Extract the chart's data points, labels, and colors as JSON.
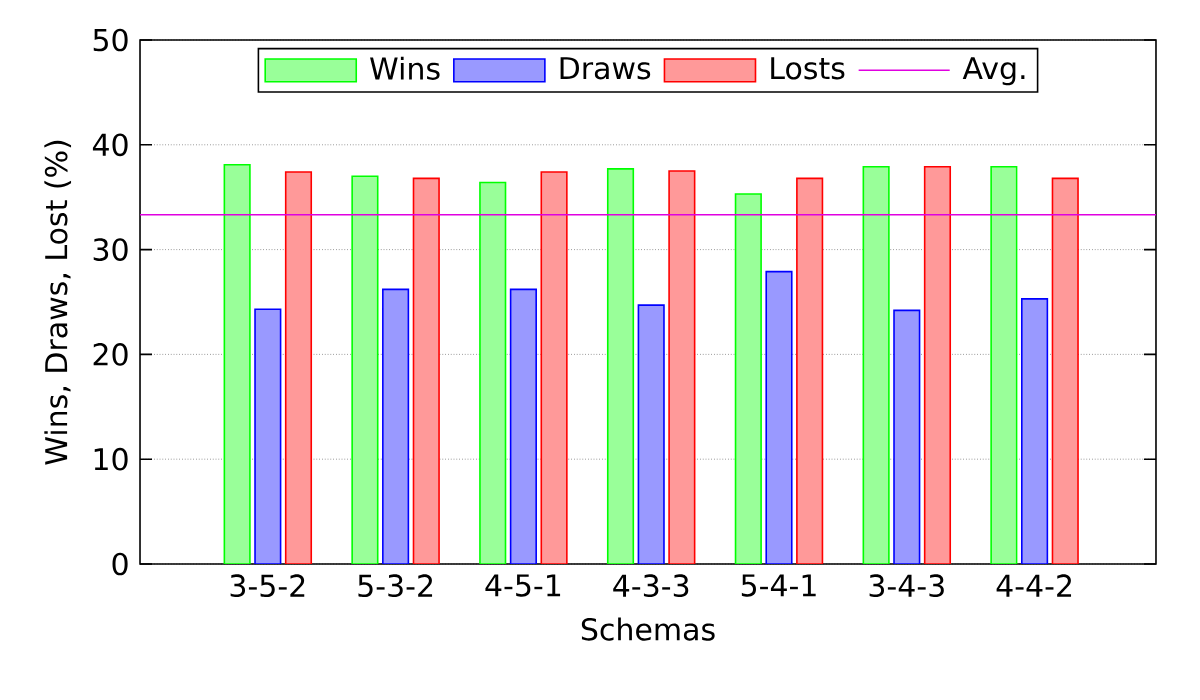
{
  "chart_data": {
    "type": "bar",
    "xlabel": "Schemas",
    "ylabel": "Wins, Draws, Lost (%)",
    "categories": [
      "3-5-2",
      "5-3-2",
      "4-5-1",
      "4-3-3",
      "5-4-1",
      "3-4-3",
      "4-4-2"
    ],
    "series": [
      {
        "name": "Wins",
        "color": "#99ff99",
        "values": [
          38.1,
          37.0,
          36.4,
          37.7,
          35.3,
          37.9,
          37.9
        ]
      },
      {
        "name": "Draws",
        "color": "#9999ff",
        "values": [
          24.3,
          26.2,
          26.2,
          24.7,
          27.9,
          24.2,
          25.3
        ]
      },
      {
        "name": "Losts",
        "color": "#ff9999",
        "values": [
          37.4,
          36.8,
          37.4,
          37.5,
          36.8,
          37.9,
          36.8
        ]
      }
    ],
    "ref_lines": [
      {
        "axis": "y",
        "value": 33.33,
        "label": "Avg.",
        "color": "#e000e0"
      }
    ],
    "ylim": [
      0,
      50
    ],
    "yticks": [
      0,
      10,
      20,
      30,
      40,
      50
    ],
    "grid": "y",
    "legend": "top"
  }
}
